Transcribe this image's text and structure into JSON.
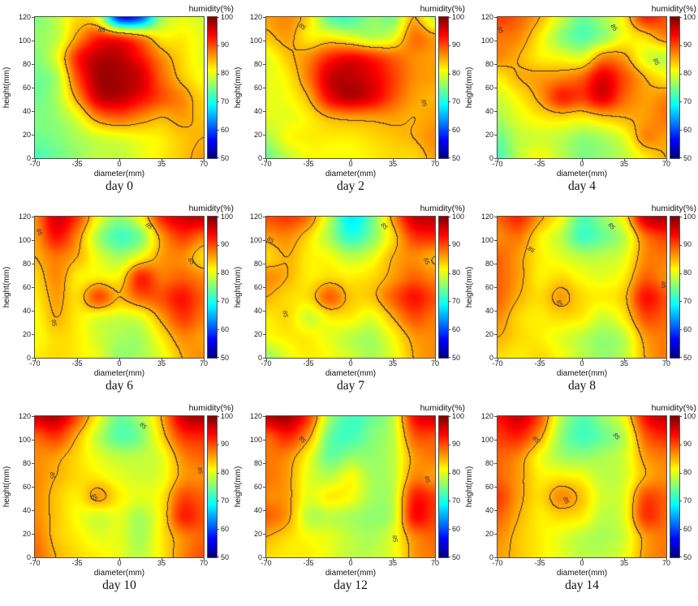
{
  "figure": {
    "description": "3x3 grid of humidity contour heatmaps over cross-section coordinates for nine days"
  },
  "axes": {
    "xlabel": "diameter(mm)",
    "ylabel": "height(mm)",
    "xticks": [
      -70,
      -35,
      0,
      35,
      70
    ],
    "yticks": [
      120,
      100,
      80,
      60,
      40,
      20,
      0
    ],
    "xlim": [
      -70,
      70
    ],
    "ylim": [
      0,
      120
    ]
  },
  "colorbar": {
    "label": "humidity(%)",
    "ticks": [
      100,
      90,
      80,
      70,
      60,
      50
    ],
    "min": 50,
    "max": 100,
    "colormap": "jet",
    "low_color": "#00008f",
    "high_color": "#7f0000"
  },
  "contour": {
    "level": 85,
    "label": "85",
    "line_color": "#2f3157"
  },
  "chart_data": {
    "type": "heatmap",
    "value_name": "humidity(%)",
    "grid_x": [
      -70,
      -52.5,
      -35,
      -17.5,
      0,
      17.5,
      35,
      52.5,
      70
    ],
    "grid_y": [
      120,
      103,
      86,
      69,
      51,
      34,
      17,
      0
    ],
    "panels": [
      {
        "title": "day 0",
        "values": [
          [
            75,
            78,
            83,
            80,
            58,
            60,
            76,
            80,
            79
          ],
          [
            76,
            78,
            86,
            92,
            91,
            87,
            82,
            82,
            80
          ],
          [
            75,
            80,
            92,
            97,
            97,
            93,
            87,
            83,
            80
          ],
          [
            74,
            77,
            90,
            98,
            98,
            96,
            89,
            84,
            81
          ],
          [
            74,
            77,
            86,
            96,
            97,
            94,
            90,
            87,
            83
          ],
          [
            75,
            76,
            80,
            87,
            89,
            87,
            85,
            86,
            84
          ],
          [
            74,
            75,
            77,
            79,
            80,
            81,
            82,
            84,
            85
          ],
          [
            72,
            74,
            76,
            78,
            78,
            80,
            82,
            84,
            86
          ]
        ],
        "contour_labels": [
          [
            -14,
            109,
            8
          ]
        ]
      },
      {
        "title": "day 2",
        "values": [
          [
            86,
            87,
            83,
            73,
            72,
            76,
            75,
            85,
            78
          ],
          [
            84,
            86,
            82,
            82,
            80,
            78,
            80,
            88,
            86
          ],
          [
            80,
            84,
            87,
            92,
            94,
            92,
            89,
            87,
            86
          ],
          [
            80,
            82,
            88,
            96,
            97,
            95,
            91,
            87,
            86
          ],
          [
            80,
            81,
            85,
            94,
            97,
            95,
            90,
            86,
            85
          ],
          [
            80,
            80,
            82,
            85,
            86,
            86,
            86,
            85,
            86
          ],
          [
            77,
            81,
            82,
            82,
            82,
            83,
            84,
            85,
            87
          ],
          [
            74,
            78,
            81,
            81,
            81,
            82,
            83,
            83,
            86
          ]
        ],
        "contour_labels": [
          [
            -40,
            112,
            40
          ],
          [
            61,
            47,
            75
          ]
        ]
      },
      {
        "title": "day 4",
        "values": [
          [
            91,
            89,
            85,
            79,
            74,
            77,
            82,
            92,
            90
          ],
          [
            88,
            87,
            82,
            76,
            73,
            76,
            81,
            83,
            87
          ],
          [
            87,
            85,
            82,
            81,
            80,
            87,
            86,
            80,
            78
          ],
          [
            82,
            85,
            86,
            87,
            89,
            95,
            90,
            85,
            82
          ],
          [
            79,
            82,
            86,
            92,
            91,
            95,
            89,
            86,
            87
          ],
          [
            77,
            80,
            82,
            83,
            82,
            84,
            85,
            86,
            88
          ],
          [
            74,
            78,
            79,
            78,
            76,
            77,
            80,
            87,
            86
          ],
          [
            72,
            78,
            81,
            78,
            75,
            76,
            78,
            82,
            85
          ]
        ],
        "contour_labels": [
          [
            -67,
            109,
            70
          ],
          [
            27,
            111,
            55
          ],
          [
            62,
            82,
            65
          ]
        ]
      },
      {
        "title": "day 6",
        "values": [
          [
            87,
            96,
            91,
            81,
            76,
            81,
            92,
            96,
            97
          ],
          [
            86,
            93,
            87,
            77,
            72,
            75,
            86,
            91,
            88
          ],
          [
            85,
            88,
            85,
            80,
            77,
            81,
            86,
            87,
            83
          ],
          [
            83,
            87,
            82,
            82,
            82,
            92,
            88,
            89,
            87
          ],
          [
            82,
            86,
            83,
            90,
            85,
            89,
            90,
            93,
            89
          ],
          [
            81,
            85,
            82,
            80,
            79,
            80,
            86,
            91,
            88
          ],
          [
            81,
            83,
            82,
            79,
            77,
            77,
            82,
            87,
            86
          ],
          [
            82,
            83,
            82,
            80,
            76,
            77,
            80,
            85,
            87
          ]
        ],
        "contour_labels": [
          [
            -66,
            107,
            65
          ],
          [
            25,
            112,
            40
          ],
          [
            60,
            82,
            55
          ],
          [
            -54,
            30,
            80
          ]
        ]
      },
      {
        "title": "day 7",
        "values": [
          [
            90,
            91,
            88,
            78,
            68,
            74,
            86,
            96,
            97
          ],
          [
            86,
            87,
            83,
            77,
            71,
            75,
            83,
            91,
            92
          ],
          [
            83,
            85,
            82,
            81,
            78,
            80,
            85,
            87,
            85
          ],
          [
            87,
            85,
            82,
            83,
            82,
            83,
            86,
            89,
            87
          ],
          [
            85,
            83,
            83,
            89,
            84,
            84,
            89,
            93,
            90
          ],
          [
            82,
            83,
            79,
            82,
            82,
            80,
            85,
            90,
            88
          ],
          [
            81,
            82,
            82,
            80,
            78,
            77,
            81,
            86,
            87
          ],
          [
            76,
            80,
            82,
            81,
            79,
            77,
            80,
            85,
            87
          ]
        ],
        "contour_labels": [
          [
            -66,
            100,
            30
          ],
          [
            28,
            112,
            50
          ],
          [
            63,
            82,
            70
          ],
          [
            -54,
            37,
            80
          ]
        ]
      },
      {
        "title": "day 8",
        "values": [
          [
            89,
            92,
            86,
            81,
            73,
            76,
            82,
            96,
            98
          ],
          [
            87,
            88,
            82,
            78,
            72,
            74,
            78,
            88,
            91
          ],
          [
            89,
            86,
            82,
            80,
            78,
            78,
            80,
            87,
            88
          ],
          [
            89,
            86,
            82,
            83,
            81,
            80,
            82,
            89,
            87
          ],
          [
            89,
            85,
            83,
            86,
            83,
            82,
            84,
            93,
            90
          ],
          [
            87,
            83,
            82,
            83,
            82,
            79,
            82,
            90,
            89
          ],
          [
            85,
            83,
            82,
            80,
            78,
            76,
            78,
            86,
            88
          ],
          [
            83,
            82,
            83,
            81,
            78,
            76,
            78,
            85,
            88
          ]
        ],
        "contour_labels": [
          [
            -42,
            92,
            35
          ],
          [
            25,
            112,
            50
          ],
          [
            68,
            62,
            90
          ],
          [
            -18,
            46,
            60
          ]
        ]
      },
      {
        "title": "day 10",
        "values": [
          [
            96,
            97,
            90,
            81,
            74,
            77,
            85,
            96,
            98
          ],
          [
            89,
            91,
            85,
            78,
            73,
            75,
            83,
            91,
            92
          ],
          [
            87,
            86,
            83,
            80,
            78,
            78,
            80,
            87,
            89
          ],
          [
            87,
            85,
            83,
            82,
            80,
            79,
            80,
            86,
            87
          ],
          [
            87,
            84,
            82,
            86,
            82,
            80,
            82,
            90,
            89
          ],
          [
            87,
            84,
            81,
            79,
            80,
            77,
            82,
            92,
            90
          ],
          [
            88,
            84,
            82,
            80,
            80,
            77,
            82,
            87,
            89
          ],
          [
            89,
            85,
            83,
            82,
            80,
            78,
            82,
            87,
            90
          ]
        ],
        "contour_labels": [
          [
            -55,
            70,
            85
          ],
          [
            20,
            112,
            45
          ],
          [
            67,
            74,
            80
          ],
          [
            -20,
            51,
            55
          ]
        ]
      },
      {
        "title": "day 12",
        "values": [
          [
            97,
            98,
            91,
            77,
            72,
            74,
            78,
            93,
            96
          ],
          [
            89,
            92,
            86,
            74,
            72,
            75,
            78,
            89,
            90
          ],
          [
            88,
            87,
            81,
            74,
            76,
            76,
            78,
            86,
            88
          ],
          [
            88,
            86,
            80,
            78,
            81,
            77,
            78,
            87,
            86
          ],
          [
            87,
            86,
            80,
            82,
            81,
            77,
            78,
            92,
            91
          ],
          [
            89,
            86,
            78,
            78,
            77,
            76,
            78,
            93,
            91
          ],
          [
            85,
            83,
            81,
            80,
            78,
            77,
            80,
            87,
            89
          ],
          [
            83,
            82,
            82,
            80,
            78,
            78,
            80,
            86,
            88
          ]
        ],
        "contour_labels": [
          [
            -40,
            100,
            50
          ],
          [
            64,
            66,
            75
          ],
          [
            37,
            16,
            80
          ]
        ]
      },
      {
        "title": "day 14",
        "values": [
          [
            93,
            96,
            90,
            78,
            73,
            76,
            81,
            93,
            97
          ],
          [
            91,
            92,
            86,
            76,
            72,
            74,
            78,
            89,
            92
          ],
          [
            89,
            87,
            81,
            77,
            76,
            77,
            79,
            86,
            88
          ],
          [
            89,
            86,
            82,
            82,
            81,
            78,
            79,
            85,
            87
          ],
          [
            91,
            86,
            83,
            87,
            84,
            79,
            80,
            90,
            89
          ],
          [
            89,
            85,
            82,
            83,
            82,
            78,
            80,
            91,
            89
          ],
          [
            87,
            84,
            82,
            80,
            78,
            77,
            79,
            86,
            88
          ],
          [
            86,
            84,
            82,
            80,
            78,
            78,
            80,
            86,
            88
          ]
        ],
        "contour_labels": [
          [
            -38,
            100,
            45
          ],
          [
            29,
            103,
            50
          ],
          [
            -13,
            48,
            70
          ]
        ]
      }
    ]
  }
}
